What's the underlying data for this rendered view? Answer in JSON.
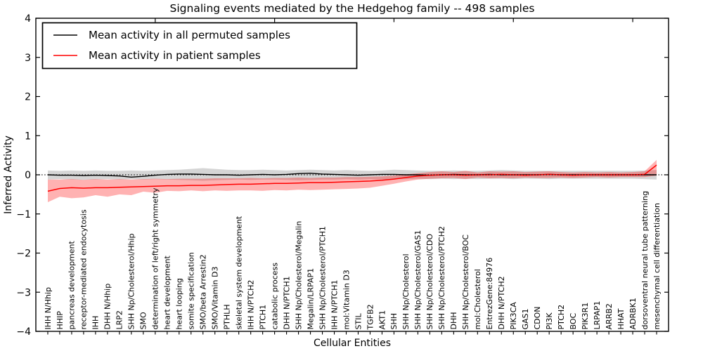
{
  "chart_data": {
    "type": "line",
    "title": "Signaling events mediated by the Hedgehog family -- 498 samples",
    "xlabel": "Cellular Entities",
    "ylabel": "Inferred Activity",
    "ylim": [
      -4,
      4
    ],
    "xlim": [
      0,
      53
    ],
    "ytick_values": [
      4,
      3,
      2,
      1,
      0,
      -1,
      -2,
      -3,
      -4
    ],
    "ytick_labels": [
      "4",
      "3",
      "2",
      "1",
      "0",
      "−1",
      "−2",
      "−3",
      "−4"
    ],
    "xticks_major": [
      10,
      20,
      30,
      40,
      50
    ],
    "grid": false,
    "legend_position": "upper left",
    "zero_line": {
      "y": 0,
      "style": "dotted",
      "color": "#000000"
    },
    "categories": [
      "IHH N/Hhip",
      "HHIP",
      "pancreas development",
      "receptor-mediated endocytosis",
      "IHH",
      "DHH N/Hhip",
      "LRP2",
      "SHH Np/Cholesterol/Hhip",
      "SMO",
      "determination of left/right symmetry",
      "heart development",
      "heart looping",
      "somite specification",
      "SMO/beta Arrestin2",
      "SMO/Vitamin D3",
      "PTHLH",
      "skeletal system development",
      "IHH N/PTCH2",
      "PTCH1",
      "catabolic process",
      "DHH N/PTCH1",
      "SHH Np/Cholesterol/Megalin",
      "Megalin/LRPAP1",
      "SHH Np/Cholesterol/PTCH1",
      "IHH N/PTCH1",
      "mol:Vitamin D3",
      "STIL",
      "TGFB2",
      "AKT1",
      "SHH",
      "SHH Np/Cholesterol",
      "SHH Np/Cholesterol/GAS1",
      "SHH Np/Cholesterol/CDO",
      "SHH Np/Cholesterol/PTCH2",
      "DHH",
      "SHH Np/Cholesterol/BOC",
      "mol:Cholesterol",
      "EntrezGene:84976",
      "DHH N/PTCH2",
      "PIK3CA",
      "GAS1",
      "CDON",
      "PI3K",
      "PTCH2",
      "BOC",
      "PIK3R1",
      "LRPAP1",
      "ARRB2",
      "HHAT",
      "ADRBK1",
      "dorsoventral neural tube patterning",
      "mesenchymal cell differentiation"
    ],
    "series": [
      {
        "name": "Mean activity in all permuted samples",
        "color": "#000000",
        "values": [
          0.0,
          -0.01,
          -0.01,
          -0.02,
          -0.01,
          -0.02,
          -0.03,
          -0.06,
          -0.04,
          -0.01,
          0.01,
          0.02,
          0.02,
          0.01,
          0.0,
          0.0,
          -0.01,
          0.0,
          0.01,
          0.0,
          0.01,
          0.03,
          0.04,
          0.02,
          0.01,
          0.0,
          -0.01,
          0.0,
          0.01,
          0.01,
          0.0,
          0.0,
          -0.01,
          0.0,
          0.01,
          0.0,
          0.0,
          0.01,
          0.0,
          0.0,
          0.0,
          0.0,
          0.01,
          0.0,
          0.0,
          0.0,
          0.0,
          0.0,
          0.0,
          0.0,
          0.0,
          0.0
        ],
        "band": {
          "color": "#808080",
          "opacity": 0.33,
          "upper": [
            0.11,
            0.1,
            0.11,
            0.1,
            0.11,
            0.1,
            0.1,
            0.11,
            0.1,
            0.11,
            0.12,
            0.13,
            0.15,
            0.17,
            0.15,
            0.13,
            0.12,
            0.12,
            0.13,
            0.12,
            0.11,
            0.12,
            0.13,
            0.12,
            0.11,
            0.12,
            0.11,
            0.1,
            0.11,
            0.13,
            0.12,
            0.11,
            0.1,
            0.1,
            0.11,
            0.1,
            0.1,
            0.11,
            0.12,
            0.11,
            0.1,
            0.1,
            0.1,
            0.1,
            0.1,
            0.1,
            0.1,
            0.1,
            0.1,
            0.1,
            0.11,
            0.12
          ],
          "lower": [
            -0.12,
            -0.11,
            -0.12,
            -0.13,
            -0.12,
            -0.11,
            -0.12,
            -0.11,
            -0.12,
            -0.11,
            -0.12,
            -0.13,
            -0.14,
            -0.15,
            -0.14,
            -0.13,
            -0.12,
            -0.13,
            -0.12,
            -0.12,
            -0.13,
            -0.14,
            -0.13,
            -0.12,
            -0.12,
            -0.11,
            -0.12,
            -0.11,
            -0.12,
            -0.11,
            -0.11,
            -0.1,
            -0.11,
            -0.1,
            -0.11,
            -0.1,
            -0.11,
            -0.1,
            -0.1,
            -0.11,
            -0.1,
            -0.1,
            -0.11,
            -0.1,
            -0.1,
            -0.1,
            -0.1,
            -0.1,
            -0.1,
            -0.1,
            -0.11,
            -0.12
          ]
        }
      },
      {
        "name": "Mean activity in patient samples",
        "color": "#ff0000",
        "values": [
          -0.42,
          -0.35,
          -0.33,
          -0.34,
          -0.33,
          -0.33,
          -0.32,
          -0.31,
          -0.3,
          -0.29,
          -0.28,
          -0.28,
          -0.27,
          -0.27,
          -0.26,
          -0.25,
          -0.24,
          -0.24,
          -0.23,
          -0.22,
          -0.22,
          -0.21,
          -0.2,
          -0.2,
          -0.19,
          -0.18,
          -0.17,
          -0.16,
          -0.14,
          -0.11,
          -0.07,
          -0.03,
          -0.01,
          0.0,
          0.0,
          -0.01,
          0.0,
          0.0,
          0.01,
          0.0,
          -0.01,
          0.0,
          0.01,
          0.0,
          -0.01,
          0.0,
          0.0,
          0.0,
          0.0,
          0.0,
          0.01,
          0.25
        ],
        "band": {
          "color": "#ff0000",
          "opacity": 0.3,
          "upper": [
            -0.12,
            -0.12,
            -0.11,
            -0.13,
            -0.11,
            -0.12,
            -0.11,
            -0.12,
            -0.11,
            -0.1,
            -0.11,
            -0.1,
            -0.1,
            -0.1,
            -0.09,
            -0.09,
            -0.09,
            -0.08,
            -0.09,
            -0.08,
            -0.08,
            -0.07,
            -0.08,
            -0.07,
            -0.07,
            -0.06,
            -0.06,
            -0.05,
            -0.04,
            -0.02,
            0.01,
            0.04,
            0.07,
            0.09,
            0.07,
            0.1,
            0.06,
            0.09,
            0.08,
            0.09,
            0.07,
            0.08,
            0.09,
            0.07,
            0.06,
            0.07,
            0.06,
            0.07,
            0.06,
            0.07,
            0.09,
            0.38
          ],
          "lower": [
            -0.7,
            -0.56,
            -0.6,
            -0.58,
            -0.52,
            -0.56,
            -0.5,
            -0.52,
            -0.43,
            -0.46,
            -0.41,
            -0.42,
            -0.4,
            -0.42,
            -0.4,
            -0.41,
            -0.4,
            -0.4,
            -0.41,
            -0.39,
            -0.4,
            -0.38,
            -0.39,
            -0.38,
            -0.37,
            -0.36,
            -0.35,
            -0.33,
            -0.28,
            -0.23,
            -0.17,
            -0.12,
            -0.1,
            -0.09,
            -0.08,
            -0.11,
            -0.07,
            -0.09,
            -0.08,
            -0.09,
            -0.07,
            -0.08,
            -0.08,
            -0.07,
            -0.08,
            -0.07,
            -0.06,
            -0.07,
            -0.06,
            -0.06,
            -0.06,
            -0.02
          ]
        }
      }
    ]
  }
}
